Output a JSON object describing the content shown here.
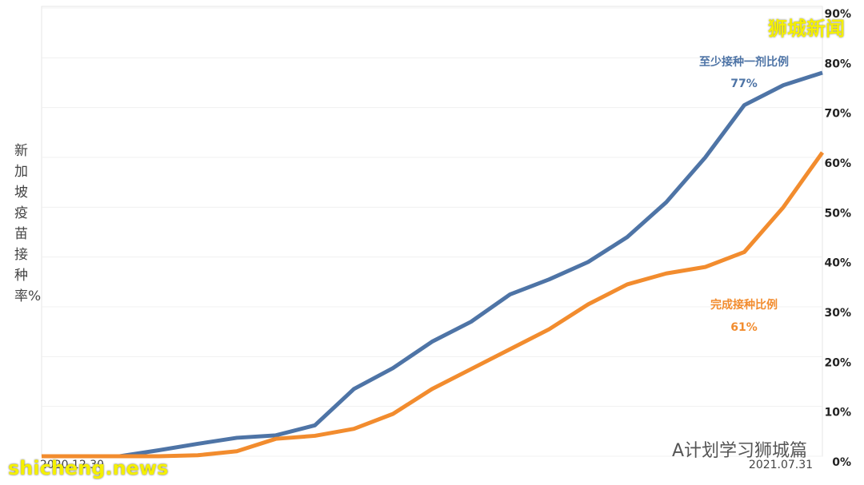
{
  "chart_data": {
    "type": "line",
    "y_label": "新加坡疫苗接种率%",
    "categories": [
      "2020.12.30",
      null,
      null,
      null,
      null,
      null,
      null,
      null,
      null,
      null,
      null,
      null,
      null,
      null,
      null,
      null,
      null,
      null,
      null,
      null,
      "2021.07.31"
    ],
    "series": [
      {
        "name": "至少接种一剂比例",
        "color": "#4e74a6",
        "values": [
          0,
          0,
          0,
          1.2,
          2.5,
          3.7,
          4.2,
          6.2,
          13.5,
          17.7,
          23,
          27,
          32.5,
          35.5,
          39,
          44,
          51,
          60,
          70.5,
          74.5,
          77
        ],
        "end_label": "77%"
      },
      {
        "name": "完成接种比例",
        "color": "#f28c2e",
        "values": [
          0,
          0,
          0,
          0,
          0.2,
          1,
          3.5,
          4.1,
          5.5,
          8.5,
          13.5,
          17.5,
          21.5,
          25.5,
          30.5,
          34.5,
          36.7,
          38,
          41,
          50,
          61
        ],
        "end_label": "61%"
      }
    ],
    "ylim": [
      0,
      90
    ],
    "yticks": [
      {
        "value": 0,
        "label": "0%"
      },
      {
        "value": 10,
        "label": "10%"
      },
      {
        "value": 20,
        "label": "20%"
      },
      {
        "value": 30,
        "label": "30%"
      },
      {
        "value": 40,
        "label": "40%"
      },
      {
        "value": 50,
        "label": "50%"
      },
      {
        "value": 60,
        "label": "60%"
      },
      {
        "value": 70,
        "label": "70%"
      },
      {
        "value": 80,
        "label": "80%"
      },
      {
        "value": 90,
        "label": "90%"
      }
    ],
    "grid": true,
    "y_axis_side": "right"
  },
  "watermarks": {
    "top": "狮城新闻",
    "bottom_right": "A计划学习狮城篇",
    "bottom_left": "shicheng.news"
  }
}
